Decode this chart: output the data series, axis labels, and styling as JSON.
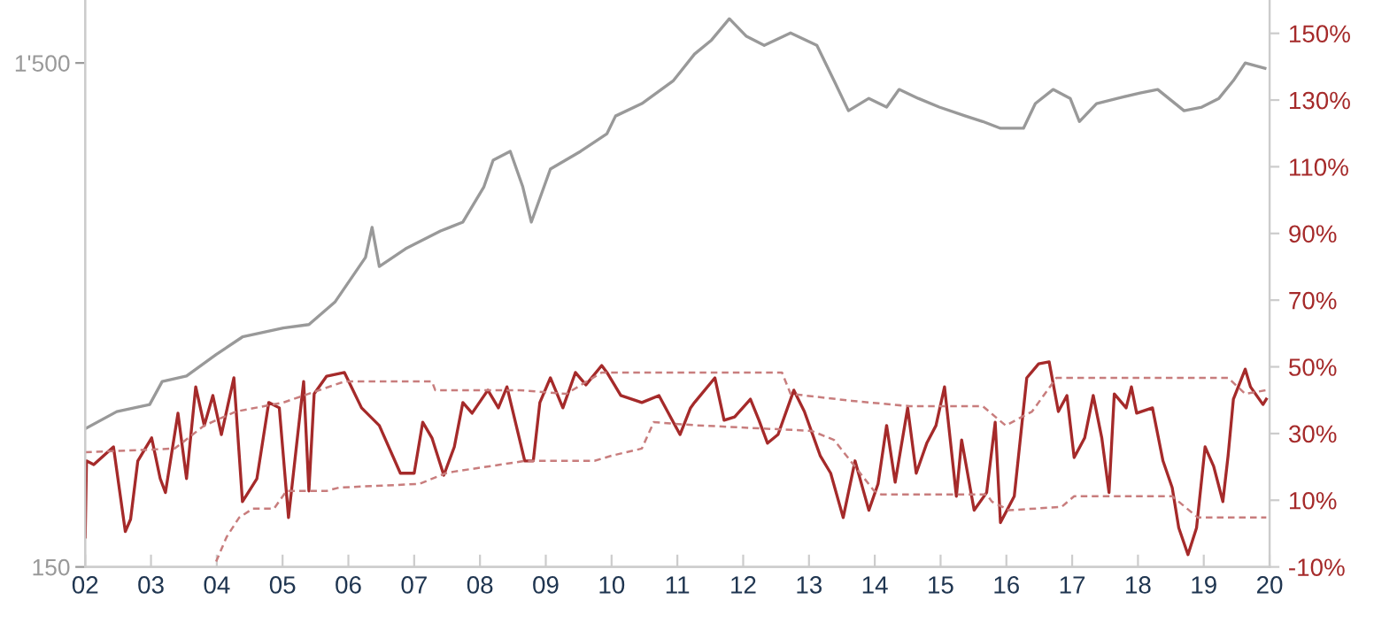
{
  "chart_data": {
    "type": "line",
    "log": "y",
    "grid": false,
    "legend": false,
    "xlim": [
      2002,
      2020
    ],
    "xticks": [
      {
        "value": 2002,
        "label": "02"
      },
      {
        "value": 2003,
        "label": "03"
      },
      {
        "value": 2004,
        "label": "04"
      },
      {
        "value": 2005,
        "label": "05"
      },
      {
        "value": 2006,
        "label": "06"
      },
      {
        "value": 2007,
        "label": "07"
      },
      {
        "value": 2008,
        "label": "08"
      },
      {
        "value": 2009,
        "label": "09"
      },
      {
        "value": 2010,
        "label": "10"
      },
      {
        "value": 2011,
        "label": "11"
      },
      {
        "value": 2012,
        "label": "12"
      },
      {
        "value": 2013,
        "label": "13"
      },
      {
        "value": 2014,
        "label": "14"
      },
      {
        "value": 2015,
        "label": "15"
      },
      {
        "value": 2016,
        "label": "16"
      },
      {
        "value": 2017,
        "label": "17"
      },
      {
        "value": 2018,
        "label": "18"
      },
      {
        "value": 2019,
        "label": "19"
      },
      {
        "value": 2020,
        "label": "20"
      }
    ],
    "ylim": [
      150,
      2000
    ],
    "yticks": [
      150,
      {
        "value": 1500,
        "label": "1'500"
      }
    ],
    "y2lim": [
      -10,
      160
    ],
    "y2ticks": [
      {
        "value": -10,
        "label": "-10%"
      },
      {
        "value": 10,
        "label": "10%"
      },
      {
        "value": 30,
        "label": "30%"
      },
      {
        "value": 50,
        "label": "50%"
      },
      {
        "value": 70,
        "label": "70%"
      },
      {
        "value": 90,
        "label": "90%"
      },
      {
        "value": 110,
        "label": "110%"
      },
      {
        "value": 130,
        "label": "130%"
      },
      {
        "value": 150,
        "label": "150%"
      }
    ],
    "series": [
      {
        "color": "#999999",
        "line_style": "solid",
        "x": [
          2002.0,
          2002.48,
          2002.98,
          2003.17,
          2003.54,
          2003.99,
          2004.39,
          2005.01,
          2005.4,
          2005.8,
          2006.26,
          2006.36,
          2006.47,
          2006.87,
          2007.4,
          2007.74,
          2008.06,
          2008.2,
          2008.46,
          2008.65,
          2008.78,
          2009.07,
          2009.53,
          2009.93,
          2010.06,
          2010.46,
          2010.94,
          2011.26,
          2011.52,
          2011.79,
          2012.05,
          2012.32,
          2012.72,
          2013.12,
          2013.38,
          2013.6,
          2013.91,
          2014.18,
          2014.37,
          2014.66,
          2014.98,
          2015.38,
          2015.64,
          2015.91,
          2016.26,
          2016.44,
          2016.71,
          2016.97,
          2017.11,
          2017.37,
          2017.69,
          2018.03,
          2018.3,
          2018.7,
          2018.97,
          2019.23,
          2019.45,
          2019.63,
          2019.93
        ],
        "values": [
          282,
          305,
          315,
          350,
          359,
          396,
          429,
          447,
          454,
          504,
          617,
          708,
          592,
          642,
          696,
          725,
          852,
          962,
          1002,
          852,
          725,
          924,
          1002,
          1086,
          1177,
          1246,
          1384,
          1562,
          1666,
          1836,
          1694,
          1626,
          1721,
          1626,
          1384,
          1206,
          1276,
          1226,
          1329,
          1276,
          1226,
          1177,
          1148,
          1113,
          1113,
          1246,
          1329,
          1276,
          1148,
          1246,
          1276,
          1308,
          1329,
          1206,
          1226,
          1276,
          1384,
          1500,
          1464
        ]
      },
      {
        "color": "#a52a2a",
        "axis": "y2",
        "line_style": "solid",
        "x": [
          2002.0,
          2002.02,
          2002.13,
          2002.43,
          2002.61,
          2002.69,
          2002.8,
          2003.01,
          2003.14,
          2003.22,
          2003.41,
          2003.54,
          2003.68,
          2003.81,
          2003.94,
          2004.07,
          2004.26,
          2004.39,
          2004.61,
          2004.79,
          2004.95,
          2005.09,
          2005.32,
          2005.4,
          2005.48,
          2005.67,
          2005.94,
          2006.2,
          2006.47,
          2006.79,
          2007.0,
          2007.13,
          2007.27,
          2007.45,
          2007.61,
          2007.74,
          2007.88,
          2008.12,
          2008.28,
          2008.41,
          2008.68,
          2008.81,
          2008.91,
          2009.07,
          2009.26,
          2009.45,
          2009.61,
          2009.85,
          2009.93,
          2010.14,
          2010.46,
          2010.72,
          2011.04,
          2011.2,
          2011.26,
          2011.57,
          2011.71,
          2011.87,
          2012.11,
          2012.24,
          2012.37,
          2012.53,
          2012.77,
          2012.93,
          2013.17,
          2013.33,
          2013.52,
          2013.7,
          2013.91,
          2014.05,
          2014.18,
          2014.31,
          2014.5,
          2014.63,
          2014.79,
          2014.93,
          2015.06,
          2015.24,
          2015.32,
          2015.51,
          2015.7,
          2015.83,
          2015.91,
          2016.12,
          2016.31,
          2016.49,
          2016.65,
          2016.79,
          2016.92,
          2017.03,
          2017.19,
          2017.32,
          2017.45,
          2017.56,
          2017.64,
          2017.82,
          2017.9,
          2017.98,
          2018.22,
          2018.38,
          2018.52,
          2018.62,
          2018.76,
          2018.89,
          2019.02,
          2019.15,
          2019.29,
          2019.37,
          2019.45,
          2019.63,
          2019.71,
          2019.9,
          2019.95
        ],
        "values": [
          -1.0,
          21.8,
          20.7,
          26.0,
          0.6,
          4.3,
          21.8,
          28.7,
          16.5,
          12.3,
          36.1,
          16.5,
          44.0,
          32.4,
          41.4,
          29.7,
          46.7,
          9.6,
          16.5,
          39.3,
          37.7,
          4.8,
          45.6,
          12.8,
          41.9,
          47.2,
          48.3,
          37.7,
          32.4,
          18.1,
          18.1,
          33.4,
          28.7,
          17.5,
          26.0,
          39.3,
          36.1,
          43.0,
          37.7,
          44.0,
          21.8,
          21.8,
          39.3,
          46.7,
          37.7,
          48.3,
          44.6,
          50.4,
          48.3,
          41.4,
          39.3,
          41.4,
          29.7,
          37.7,
          39.3,
          46.7,
          34.0,
          35.0,
          40.3,
          34.0,
          27.1,
          29.7,
          43.0,
          36.6,
          23.4,
          18.1,
          4.8,
          21.8,
          7.0,
          14.9,
          32.4,
          15.4,
          37.7,
          18.1,
          27.1,
          32.4,
          44.0,
          11.2,
          28.1,
          7.0,
          12.3,
          33.4,
          3.3,
          11.2,
          46.7,
          50.9,
          51.5,
          36.6,
          41.4,
          22.8,
          28.7,
          41.4,
          28.7,
          12.3,
          41.9,
          37.7,
          44.0,
          36.1,
          37.7,
          21.8,
          13.8,
          1.7,
          -6.3,
          1.7,
          26.0,
          20.2,
          9.6,
          23.4,
          40.3,
          49.3,
          44.0,
          38.7,
          40.3
        ]
      },
      {
        "color": "#c87d7d",
        "axis": "y2",
        "line_style": "dashed",
        "x": [
          2002.0,
          2003.36,
          2003.81,
          2004.29,
          2005.01,
          2005.94,
          2007.27,
          2007.32,
          2008.6,
          2009.31,
          2009.85,
          2012.59,
          2012.72,
          2013.65,
          2014.53,
          2015.64,
          2015.99,
          2016.39,
          2016.76,
          2019.37,
          2019.63,
          2019.95
        ],
        "values": [
          24.4,
          25.5,
          32.4,
          36.6,
          39.3,
          45.6,
          45.6,
          43.0,
          43.0,
          41.9,
          48.3,
          48.3,
          41.9,
          39.8,
          38.2,
          38.2,
          32.4,
          36.6,
          46.7,
          46.7,
          41.9,
          43.0
        ]
      },
      {
        "color": "#c87d7d",
        "axis": "y2",
        "line_style": "dashed",
        "x": [
          2003.99,
          2004.15,
          2004.34,
          2004.55,
          2004.87,
          2005.06,
          2005.67,
          2005.86,
          2007.08,
          2007.48,
          2007.61,
          2008.52,
          2008.68,
          2009.74,
          2010.01,
          2010.46,
          2010.64,
          2011.26,
          2013.04,
          2013.38,
          2013.99,
          2014.1,
          2015.7,
          2015.78,
          2016.04,
          2016.84,
          2017.03,
          2018.52,
          2018.91,
          2019.95
        ],
        "values": [
          -8.4,
          -1.0,
          4.8,
          7.5,
          7.5,
          12.8,
          12.8,
          13.8,
          14.9,
          18.1,
          18.6,
          21.3,
          21.8,
          21.8,
          23.4,
          25.5,
          33.4,
          32.5,
          30.8,
          28.1,
          12.8,
          11.7,
          11.7,
          9.6,
          7.0,
          8.0,
          11.2,
          11.2,
          4.8,
          4.8
        ]
      }
    ]
  }
}
